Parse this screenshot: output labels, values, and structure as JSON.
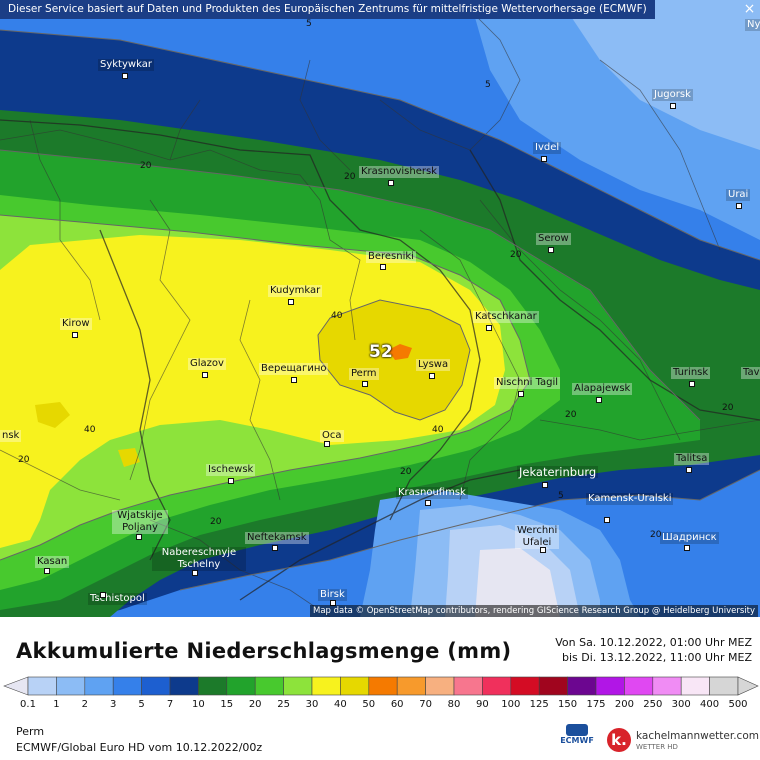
{
  "header": {
    "notice": "Dieser Service basiert auf Daten und Produkten des Europäischen Zentrums für mittelfristige Wettervorhersage (ECMWF)",
    "close_label": "×"
  },
  "map": {
    "attribution": "Map data © OpenStreetMap contributors, rendering GIScience Research Group @ Heidelberg University",
    "max_value": "52",
    "cities": [
      {
        "name": "Syktywkar"
      },
      {
        "name": "Jugorsk"
      },
      {
        "name": "Ivdel"
      },
      {
        "name": "Krasnovishersk"
      },
      {
        "name": "Urai"
      },
      {
        "name": "Serow"
      },
      {
        "name": "Beresniki"
      },
      {
        "name": "Kudymkar"
      },
      {
        "name": "Katschkanar"
      },
      {
        "name": "Kirow"
      },
      {
        "name": "Glazov"
      },
      {
        "name": "Верещагино"
      },
      {
        "name": "Perm"
      },
      {
        "name": "Lyswa"
      },
      {
        "name": "Nischni Tagil"
      },
      {
        "name": "Alapajewsk"
      },
      {
        "name": "Turinsk"
      },
      {
        "name": "Tav"
      },
      {
        "name": "Oca"
      },
      {
        "name": "Talitsa"
      },
      {
        "name": "Ischewsk"
      },
      {
        "name": "Jekaterinburg"
      },
      {
        "name": "Krasnoufimsk"
      },
      {
        "name": "Kamensk-Uralski"
      },
      {
        "name": "Wjatskije Poljany"
      },
      {
        "name": "Neftekamsk"
      },
      {
        "name": "Werchni Ufalei"
      },
      {
        "name": "Шадринск"
      },
      {
        "name": "Nabereschnyje Tschelny"
      },
      {
        "name": "Kasan"
      },
      {
        "name": "Tschistopol"
      },
      {
        "name": "Birsk"
      },
      {
        "name": "Ny"
      },
      {
        "name": "nsk"
      }
    ],
    "contours": [
      "5",
      "5",
      "20",
      "20",
      "20",
      "20",
      "40",
      "40",
      "40",
      "20",
      "20",
      "5",
      "20",
      "20",
      "20"
    ]
  },
  "legend": {
    "title": "Akkumulierte Niederschlagsmenge (mm)",
    "period_from": "Von Sa. 10.12.2022, 01:00 Uhr MEZ",
    "period_to": "bis Di. 13.12.2022, 11:00 Uhr MEZ",
    "values": [
      "0.1",
      "1",
      "2",
      "3",
      "5",
      "7",
      "10",
      "15",
      "20",
      "25",
      "30",
      "40",
      "50",
      "60",
      "70",
      "80",
      "90",
      "100",
      "125",
      "150",
      "175",
      "200",
      "250",
      "300",
      "400",
      "500"
    ],
    "colors": [
      "#e6e6f2",
      "#b8d2f6",
      "#8cbcf5",
      "#5fa2f2",
      "#3580ea",
      "#1d5fd0",
      "#0d3a8c",
      "#1c7a2a",
      "#22a32c",
      "#48c92e",
      "#8de33b",
      "#f7f21e",
      "#e6d800",
      "#f57a00",
      "#f79a2c",
      "#f7b080",
      "#f7768e",
      "#f0305c",
      "#d40c24",
      "#a0051e",
      "#6c0690",
      "#b116e6",
      "#e048f2",
      "#f08cf4",
      "#f8e6f6",
      "#d6d6d6"
    ],
    "location": "Perm",
    "model": "ECMWF/Global Euro HD vom  10.12.2022/00z",
    "ecmwf_label": "ECMWF",
    "brand_name": "kachelmannwetter.com",
    "brand_sub": "WETTER HD",
    "brand_letter": "k."
  }
}
